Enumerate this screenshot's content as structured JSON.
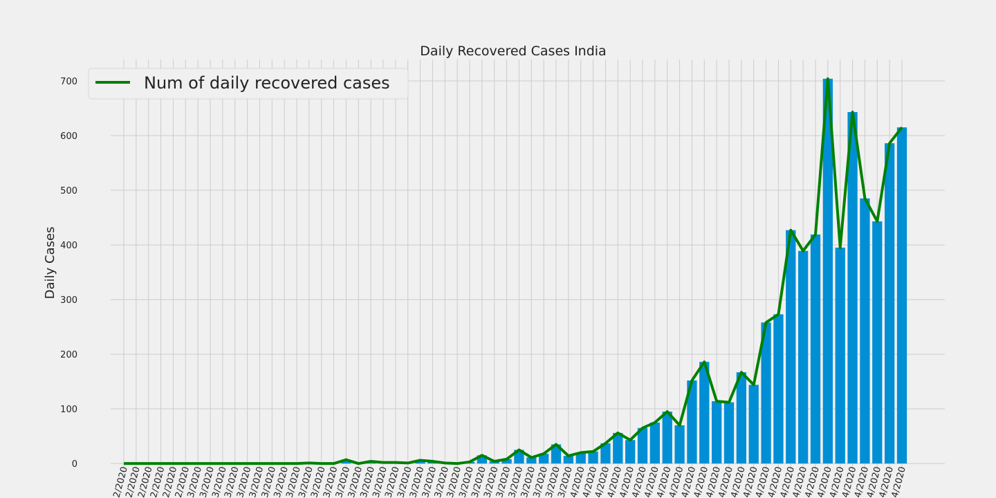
{
  "chart_data": {
    "type": "bar",
    "title": "Daily Recovered Cases India",
    "y_label": "Daily Cases",
    "bar_color": "#008fd5",
    "categories": [
      "2/2020",
      "2/2020",
      "2/2020",
      "2/2020",
      "2/2020",
      "2/2020",
      "3/2020",
      "3/2020",
      "3/2020",
      "3/2020",
      "3/2020",
      "3/2020",
      "3/2020",
      "3/2020",
      "3/2020",
      "3/2020",
      "3/2020",
      "3/2020",
      "3/2020",
      "3/2020",
      "3/2020",
      "3/2020",
      "3/2020",
      "3/2020",
      "3/2020",
      "3/2020",
      "3/2020",
      "3/2020",
      "3/2020",
      "3/2020",
      "3/2020",
      "3/2020",
      "3/2020",
      "3/2020",
      "3/2020",
      "3/2020",
      "3/2020",
      "4/2020",
      "4/2020",
      "4/2020",
      "4/2020",
      "4/2020",
      "4/2020",
      "4/2020",
      "4/2020",
      "4/2020",
      "4/2020",
      "4/2020",
      "4/2020",
      "4/2020",
      "4/2020",
      "4/2020",
      "4/2020",
      "4/2020",
      "4/2020",
      "4/2020",
      "4/2020",
      "4/2020",
      "4/2020",
      "4/2020",
      "4/2020",
      "4/2020",
      "4/2020",
      "4/2020"
    ],
    "series": [
      {
        "name": "Num of daily recovered cases",
        "color": "#008000",
        "values": [
          0,
          0,
          0,
          0,
          0,
          0,
          0,
          0,
          0,
          0,
          0,
          0,
          0,
          0,
          0,
          1,
          0,
          0,
          7,
          0,
          4,
          2,
          2,
          1,
          6,
          4,
          1,
          0,
          3,
          15,
          4,
          8,
          25,
          11,
          18,
          35,
          14,
          20,
          22,
          37,
          56,
          43,
          65,
          75,
          95,
          70,
          152,
          186,
          114,
          112,
          167,
          144,
          258,
          273,
          427,
          389,
          419,
          704,
          395,
          643,
          485,
          443,
          586,
          615
        ]
      }
    ],
    "ylim": [
      -35.2,
      739.2
    ],
    "yticks": [
      0,
      100,
      200,
      300,
      400,
      500,
      600,
      700
    ],
    "grid": true,
    "legend": "upper left"
  }
}
